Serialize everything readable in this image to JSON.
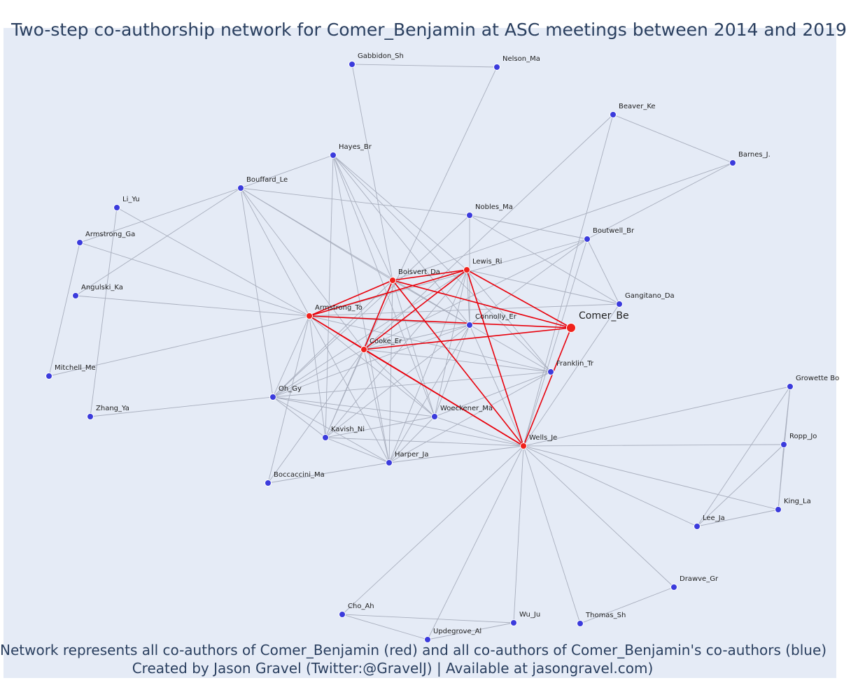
{
  "title": "Two-step co-authorship network for Comer_Benjamin at ASC meetings between 2014 and 2019",
  "footer": {
    "line1": "Network represents all co-authors of Comer_Benjamin (red) and all co-authors of Comer_Benjamin's co-authors (blue)",
    "line2": "Created by Jason Gravel (Twitter:@GravelJ) | Available at jasongravel.com)"
  },
  "colors": {
    "background": "#e5ebf6",
    "red_node": "#f0221c",
    "blue_node": "#3b3bdc",
    "red_edge": "#e8000b",
    "gray_edge": "#a8aebd",
    "text": "#2a3f5f"
  },
  "nodes": [
    {
      "id": "Comer_Be",
      "label": "Comer_Be",
      "group": "focal"
    },
    {
      "id": "Armstrong_To",
      "label": "Armstrong_To",
      "group": "red"
    },
    {
      "id": "Boisvert_Da",
      "label": "Boisvert_Da",
      "group": "red"
    },
    {
      "id": "Lewis_Ri",
      "label": "Lewis_Ri",
      "group": "red"
    },
    {
      "id": "Cooke_Er",
      "label": "Cooke_Er",
      "group": "red"
    },
    {
      "id": "Wells_Je",
      "label": "Wells_Je",
      "group": "red"
    },
    {
      "id": "Gabbidon_Sh",
      "label": "Gabbidon_Sh",
      "group": "blue"
    },
    {
      "id": "Nelson_Ma",
      "label": "Nelson_Ma",
      "group": "blue"
    },
    {
      "id": "Beaver_Ke",
      "label": "Beaver_Ke",
      "group": "blue"
    },
    {
      "id": "Barnes_J",
      "label": "Barnes_J.",
      "group": "blue"
    },
    {
      "id": "Hayes_Br",
      "label": "Hayes_Br",
      "group": "blue"
    },
    {
      "id": "Bouffard_Le",
      "label": "Bouffard_Le",
      "group": "blue"
    },
    {
      "id": "Li_Yu",
      "label": "Li_Yu",
      "group": "blue"
    },
    {
      "id": "Armstrong_Ga",
      "label": "Armstrong_Ga",
      "group": "blue"
    },
    {
      "id": "Nobles_Ma",
      "label": "Nobles_Ma",
      "group": "blue"
    },
    {
      "id": "Boutwell_Br",
      "label": "Boutwell_Br",
      "group": "blue"
    },
    {
      "id": "Angulski_Ka",
      "label": "Angulski_Ka",
      "group": "blue"
    },
    {
      "id": "Gangitano_Da",
      "label": "Gangitano_Da",
      "group": "blue"
    },
    {
      "id": "Connolly_Er",
      "label": "Connolly_Er",
      "group": "blue"
    },
    {
      "id": "Mitchell_Me",
      "label": "Mitchell_Me",
      "group": "blue"
    },
    {
      "id": "Franklin_Tr",
      "label": "Franklin_Tr",
      "group": "blue"
    },
    {
      "id": "Growette_Bo",
      "label": "Growette Bo",
      "group": "blue"
    },
    {
      "id": "Oh_Gy",
      "label": "Oh_Gy",
      "group": "blue"
    },
    {
      "id": "Zhang_Ya",
      "label": "Zhang_Ya",
      "group": "blue"
    },
    {
      "id": "Woeckener_Ma",
      "label": "Woeckener_Ma",
      "group": "blue"
    },
    {
      "id": "Ropp_Jo",
      "label": "Ropp_Jo",
      "group": "blue"
    },
    {
      "id": "Kavish_Ni",
      "label": "Kavish_Ni",
      "group": "blue"
    },
    {
      "id": "Harper_Ja",
      "label": "Harper_Ja",
      "group": "blue"
    },
    {
      "id": "Boccaccini_Ma",
      "label": "Boccaccini_Ma",
      "group": "blue"
    },
    {
      "id": "King_La",
      "label": "King_La",
      "group": "blue"
    },
    {
      "id": "Lee_Ja",
      "label": "Lee_Ja",
      "group": "blue"
    },
    {
      "id": "Drawve_Gr",
      "label": "Drawve_Gr",
      "group": "blue"
    },
    {
      "id": "Cho_Ah",
      "label": "Cho_Ah",
      "group": "blue"
    },
    {
      "id": "Wu_Ju",
      "label": "Wu_Ju",
      "group": "blue"
    },
    {
      "id": "Thomas_Sh",
      "label": "Thomas_Sh",
      "group": "blue"
    },
    {
      "id": "Updegrove_Al",
      "label": "Updegrove_Al",
      "group": "blue"
    }
  ],
  "edges": [
    [
      "Comer_Be",
      "Armstrong_To",
      "red"
    ],
    [
      "Comer_Be",
      "Boisvert_Da",
      "red"
    ],
    [
      "Comer_Be",
      "Lewis_Ri",
      "red"
    ],
    [
      "Comer_Be",
      "Cooke_Er",
      "red"
    ],
    [
      "Comer_Be",
      "Wells_Je",
      "red"
    ],
    [
      "Armstrong_To",
      "Boisvert_Da",
      "red"
    ],
    [
      "Armstrong_To",
      "Lewis_Ri",
      "red"
    ],
    [
      "Armstrong_To",
      "Cooke_Er",
      "red"
    ],
    [
      "Armstrong_To",
      "Wells_Je",
      "red"
    ],
    [
      "Boisvert_Da",
      "Lewis_Ri",
      "red"
    ],
    [
      "Boisvert_Da",
      "Cooke_Er",
      "red"
    ],
    [
      "Boisvert_Da",
      "Wells_Je",
      "red"
    ],
    [
      "Lewis_Ri",
      "Cooke_Er",
      "red"
    ],
    [
      "Lewis_Ri",
      "Wells_Je",
      "red"
    ],
    [
      "Cooke_Er",
      "Wells_Je",
      "red"
    ],
    [
      "Gabbidon_Sh",
      "Nelson_Ma",
      "gray"
    ],
    [
      "Gabbidon_Sh",
      "Boisvert_Da",
      "gray"
    ],
    [
      "Nelson_Ma",
      "Cooke_Er",
      "gray"
    ],
    [
      "Beaver_Ke",
      "Barnes_J",
      "gray"
    ],
    [
      "Beaver_Ke",
      "Cooke_Er",
      "gray"
    ],
    [
      "Beaver_Ke",
      "Wells_Je",
      "gray"
    ],
    [
      "Barnes_J",
      "Boisvert_Da",
      "gray"
    ],
    [
      "Hayes_Br",
      "Bouffard_Le",
      "gray"
    ],
    [
      "Hayes_Br",
      "Boisvert_Da",
      "gray"
    ],
    [
      "Hayes_Br",
      "Connolly_Er",
      "gray"
    ],
    [
      "Hayes_Br",
      "Harper_Ja",
      "gray"
    ],
    [
      "Hayes_Br",
      "Kavish_Ni",
      "gray"
    ],
    [
      "Hayes_Br",
      "Woeckener_Ma",
      "gray"
    ],
    [
      "Hayes_Br",
      "Lewis_Ri",
      "gray"
    ],
    [
      "Hayes_Br",
      "Franklin_Tr",
      "gray"
    ],
    [
      "Bouffard_Le",
      "Armstrong_Ga",
      "gray"
    ],
    [
      "Bouffard_Le",
      "Armstrong_To",
      "gray"
    ],
    [
      "Bouffard_Le",
      "Boisvert_Da",
      "gray"
    ],
    [
      "Bouffard_Le",
      "Nobles_Ma",
      "gray"
    ],
    [
      "Bouffard_Le",
      "Connolly_Er",
      "gray"
    ],
    [
      "Bouffard_Le",
      "Cooke_Er",
      "gray"
    ],
    [
      "Bouffard_Le",
      "Oh_Gy",
      "gray"
    ],
    [
      "Bouffard_Le",
      "Angulski_Ka",
      "gray"
    ],
    [
      "Li_Yu",
      "Zhang_Ya",
      "gray"
    ],
    [
      "Li_Yu",
      "Armstrong_To",
      "gray"
    ],
    [
      "Armstrong_Ga",
      "Mitchell_Me",
      "gray"
    ],
    [
      "Armstrong_Ga",
      "Armstrong_To",
      "gray"
    ],
    [
      "Angulski_Ka",
      "Armstrong_To",
      "gray"
    ],
    [
      "Mitchell_Me",
      "Armstrong_To",
      "gray"
    ],
    [
      "Zhang_Ya",
      "Oh_Gy",
      "gray"
    ],
    [
      "Nobles_Ma",
      "Boutwell_Br",
      "gray"
    ],
    [
      "Nobles_Ma",
      "Oh_Gy",
      "gray"
    ],
    [
      "Nobles_Ma",
      "Gangitano_Da",
      "gray"
    ],
    [
      "Nobles_Ma",
      "Connolly_Er",
      "gray"
    ],
    [
      "Boutwell_Br",
      "Barnes_J",
      "gray"
    ],
    [
      "Boutwell_Br",
      "Gangitano_Da",
      "gray"
    ],
    [
      "Boutwell_Br",
      "Armstrong_To",
      "gray"
    ],
    [
      "Boutwell_Br",
      "Wells_Je",
      "gray"
    ],
    [
      "Boutwell_Br",
      "Cooke_Er",
      "gray"
    ],
    [
      "Boutwell_Br",
      "Connolly_Er",
      "gray"
    ],
    [
      "Gangitano_Da",
      "Armstrong_To",
      "gray"
    ],
    [
      "Gangitano_Da",
      "Wells_Je",
      "gray"
    ],
    [
      "Gangitano_Da",
      "Lewis_Ri",
      "gray"
    ],
    [
      "Connolly_Er",
      "Armstrong_To",
      "gray"
    ],
    [
      "Connolly_Er",
      "Boisvert_Da",
      "gray"
    ],
    [
      "Connolly_Er",
      "Lewis_Ri",
      "gray"
    ],
    [
      "Connolly_Er",
      "Cooke_Er",
      "gray"
    ],
    [
      "Connolly_Er",
      "Oh_Gy",
      "gray"
    ],
    [
      "Connolly_Er",
      "Harper_Ja",
      "gray"
    ],
    [
      "Connolly_Er",
      "Woeckener_Ma",
      "gray"
    ],
    [
      "Connolly_Er",
      "Wells_Je",
      "gray"
    ],
    [
      "Connolly_Er",
      "Kavish_Ni",
      "gray"
    ],
    [
      "Franklin_Tr",
      "Armstrong_To",
      "gray"
    ],
    [
      "Franklin_Tr",
      "Boisvert_Da",
      "gray"
    ],
    [
      "Franklin_Tr",
      "Lewis_Ri",
      "gray"
    ],
    [
      "Franklin_Tr",
      "Cooke_Er",
      "gray"
    ],
    [
      "Franklin_Tr",
      "Oh_Gy",
      "gray"
    ],
    [
      "Franklin_Tr",
      "Woeckener_Ma",
      "gray"
    ],
    [
      "Franklin_Tr",
      "Harper_Ja",
      "gray"
    ],
    [
      "Oh_Gy",
      "Armstrong_To",
      "gray"
    ],
    [
      "Oh_Gy",
      "Boisvert_Da",
      "gray"
    ],
    [
      "Oh_Gy",
      "Lewis_Ri",
      "gray"
    ],
    [
      "Oh_Gy",
      "Cooke_Er",
      "gray"
    ],
    [
      "Oh_Gy",
      "Kavish_Ni",
      "gray"
    ],
    [
      "Oh_Gy",
      "Harper_Ja",
      "gray"
    ],
    [
      "Oh_Gy",
      "Woeckener_Ma",
      "gray"
    ],
    [
      "Oh_Gy",
      "Wells_Je",
      "gray"
    ],
    [
      "Woeckener_Ma",
      "Armstrong_To",
      "gray"
    ],
    [
      "Woeckener_Ma",
      "Boisvert_Da",
      "gray"
    ],
    [
      "Woeckener_Ma",
      "Lewis_Ri",
      "gray"
    ],
    [
      "Woeckener_Ma",
      "Cooke_Er",
      "gray"
    ],
    [
      "Woeckener_Ma",
      "Kavish_Ni",
      "gray"
    ],
    [
      "Woeckener_Ma",
      "Harper_Ja",
      "gray"
    ],
    [
      "Woeckener_Ma",
      "Wells_Je",
      "gray"
    ],
    [
      "Kavish_Ni",
      "Armstrong_To",
      "gray"
    ],
    [
      "Kavish_Ni",
      "Boisvert_Da",
      "gray"
    ],
    [
      "Kavish_Ni",
      "Lewis_Ri",
      "gray"
    ],
    [
      "Kavish_Ni",
      "Cooke_Er",
      "gray"
    ],
    [
      "Kavish_Ni",
      "Wells_Je",
      "gray"
    ],
    [
      "Kavish_Ni",
      "Harper_Ja",
      "gray"
    ],
    [
      "Harper_Ja",
      "Armstrong_To",
      "gray"
    ],
    [
      "Harper_Ja",
      "Boisvert_Da",
      "gray"
    ],
    [
      "Harper_Ja",
      "Lewis_Ri",
      "gray"
    ],
    [
      "Harper_Ja",
      "Cooke_Er",
      "gray"
    ],
    [
      "Harper_Ja",
      "Wells_Je",
      "gray"
    ],
    [
      "Boccaccini_Ma",
      "Armstrong_To",
      "gray"
    ],
    [
      "Boccaccini_Ma",
      "Harper_Ja",
      "gray"
    ],
    [
      "Boccaccini_Ma",
      "Cooke_Er",
      "gray"
    ],
    [
      "Growette_Bo",
      "Ropp_Jo",
      "gray"
    ],
    [
      "Growette_Bo",
      "Wells_Je",
      "gray"
    ],
    [
      "Growette_Bo",
      "Lee_Ja",
      "gray"
    ],
    [
      "Growette_Bo",
      "King_La",
      "gray"
    ],
    [
      "Ropp_Jo",
      "King_La",
      "gray"
    ],
    [
      "Ropp_Jo",
      "Lee_Ja",
      "gray"
    ],
    [
      "Ropp_Jo",
      "Wells_Je",
      "gray"
    ],
    [
      "King_La",
      "Lee_Ja",
      "gray"
    ],
    [
      "King_La",
      "Wells_Je",
      "gray"
    ],
    [
      "Lee_Ja",
      "Wells_Je",
      "gray"
    ],
    [
      "Drawve_Gr",
      "Thomas_Sh",
      "gray"
    ],
    [
      "Drawve_Gr",
      "Wells_Je",
      "gray"
    ],
    [
      "Thomas_Sh",
      "Wells_Je",
      "gray"
    ],
    [
      "Cho_Ah",
      "Wu_Ju",
      "gray"
    ],
    [
      "Cho_Ah",
      "Updegrove_Al",
      "gray"
    ],
    [
      "Cho_Ah",
      "Wells_Je",
      "gray"
    ],
    [
      "Wu_Ju",
      "Updegrove_Al",
      "gray"
    ],
    [
      "Wu_Ju",
      "Wells_Je",
      "gray"
    ],
    [
      "Updegrove_Al",
      "Wells_Je",
      "gray"
    ]
  ]
}
